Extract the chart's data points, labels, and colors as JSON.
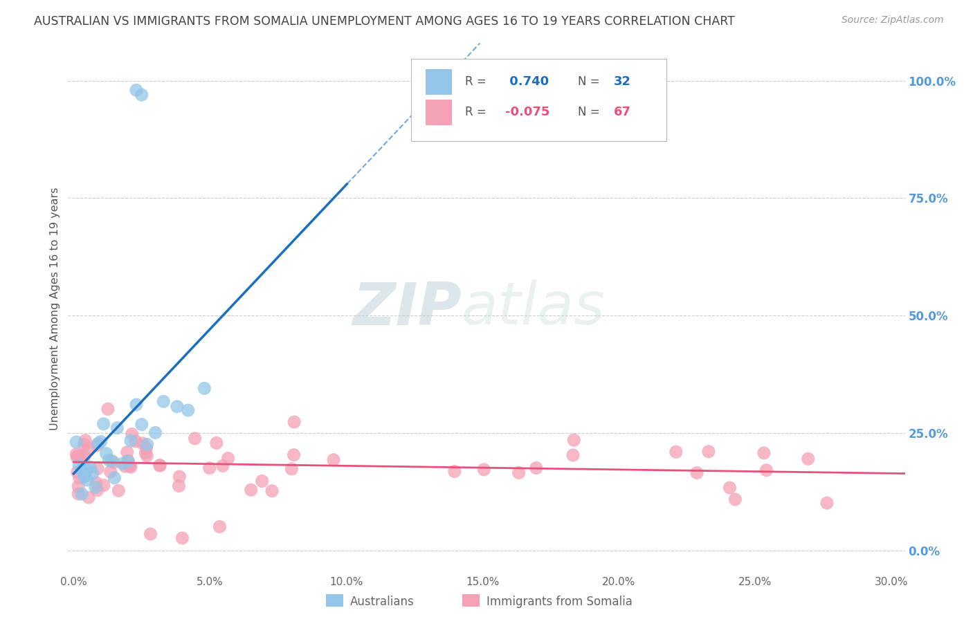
{
  "title": "AUSTRALIAN VS IMMIGRANTS FROM SOMALIA UNEMPLOYMENT AMONG AGES 16 TO 19 YEARS CORRELATION CHART",
  "source": "Source: ZipAtlas.com",
  "ylabel": "Unemployment Among Ages 16 to 19 years",
  "xlabel_ticks": [
    "0.0%",
    "5.0%",
    "10.0%",
    "15.0%",
    "20.0%",
    "25.0%",
    "30.0%"
  ],
  "xlabel_vals": [
    0.0,
    0.05,
    0.1,
    0.15,
    0.2,
    0.25,
    0.3
  ],
  "ylabel_ticks": [
    "100.0%",
    "75.0%",
    "50.0%",
    "25.0%",
    "0.0%"
  ],
  "ylabel_vals": [
    1.0,
    0.75,
    0.5,
    0.25,
    0.0
  ],
  "xlim": [
    -0.002,
    0.305
  ],
  "ylim": [
    -0.05,
    1.08
  ],
  "aus_R": 0.74,
  "aus_N": 32,
  "som_R": -0.075,
  "som_N": 67,
  "aus_color": "#92C5E8",
  "som_color": "#F4A0B5",
  "aus_line_color": "#1A6FBF",
  "som_line_color": "#E8507A",
  "watermark_zip": "ZIP",
  "watermark_atlas": "atlas",
  "background_color": "#FFFFFF",
  "grid_color": "#CCCCCC",
  "title_color": "#444444",
  "right_tick_color": "#5599DD",
  "legend_aus_label": "Australians",
  "legend_som_label": "Immigrants from Somalia",
  "legend_R_label": "R = ",
  "legend_N_label": "N = "
}
